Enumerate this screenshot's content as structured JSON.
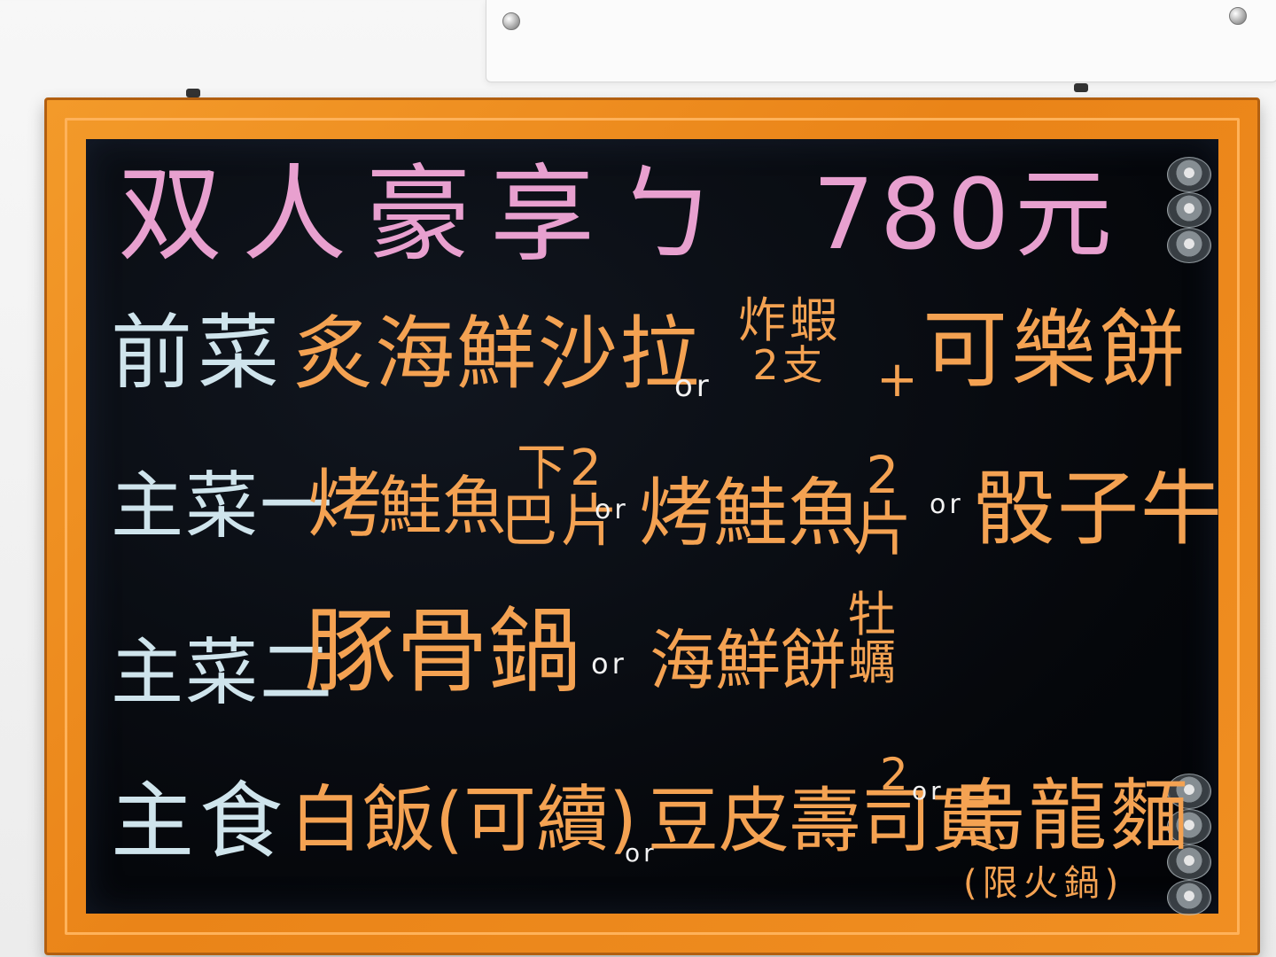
{
  "title": {
    "text": "双人豪享ㄅ",
    "price": "780元"
  },
  "rows": {
    "appetizer": {
      "label": "前菜",
      "opt1": "炙海鮮沙拉",
      "or1": "or",
      "opt2_top": "炸蝦",
      "opt2_bottom": "2支",
      "plus": "+",
      "opt3": "可樂餅"
    },
    "main1": {
      "label": "主菜一",
      "prefix": "烤",
      "opt1": "鮭魚",
      "opt1_top": "下2",
      "opt1_bottom": "巴片",
      "or1": "or",
      "opt2": "烤鮭魚",
      "opt2_top": "2",
      "opt2_bottom": "片",
      "or2": "or",
      "opt3": "骰子牛"
    },
    "main2": {
      "label": "主菜二",
      "opt1": "豚骨鍋",
      "or1": "or",
      "opt2": "海鮮餅",
      "opt2_top": "牡",
      "opt2_bottom": "蠣"
    },
    "staple": {
      "label": "主食",
      "opt1": "白飯(可續)",
      "or1": "or",
      "opt2": "豆皮壽司貫",
      "opt2_top": "2",
      "or2": "or",
      "opt3": "烏龍麵",
      "opt3_note": "(限火鍋)"
    }
  },
  "colors": {
    "board": "#05070b",
    "frame": "#ea8418",
    "title_pink": "#e8a0cf",
    "label_blue": "#cfe4ec",
    "item_orange": "#f4a252",
    "or_white": "#f2f2f2"
  }
}
